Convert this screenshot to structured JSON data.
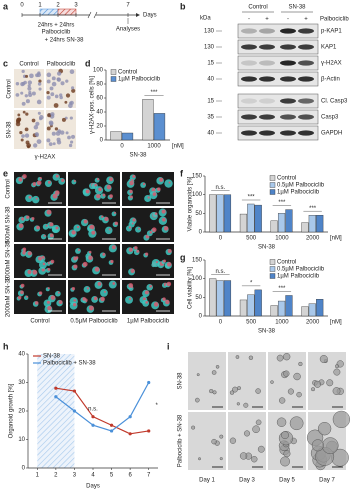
{
  "panels": {
    "a": {
      "label": "a",
      "ticks": [
        0,
        1,
        2,
        3,
        7
      ],
      "axis_label": "Days",
      "treatment_lines": [
        "24hrs + 24hrs",
        "Palbociclib",
        "+ 24hrs SN-38"
      ],
      "end_label": "Analyses"
    },
    "b": {
      "label": "b",
      "groups": [
        "Control",
        "SN-38"
      ],
      "kda_label": "kDa",
      "treatment": "Palbociclib",
      "lane_signs": [
        "-",
        "+",
        "-",
        "+"
      ],
      "rows": [
        {
          "name": "p-KAP1",
          "kda": 130
        },
        {
          "name": "KAP1",
          "kda": 130
        },
        {
          "name": "γ-H2AX",
          "kda": 15
        },
        {
          "name": "β-Actin",
          "kda": 40
        },
        {
          "name": "Cl. Casp3",
          "kda": 15
        },
        {
          "name": "Casp3",
          "kda": 35
        },
        {
          "name": "GAPDH",
          "kda": 40
        }
      ]
    },
    "c": {
      "label": "c",
      "columns": [
        "Control",
        "Palbociclib"
      ],
      "rows": [
        "Control",
        "SN-38"
      ],
      "caption": "γ-H2AX"
    },
    "e": {
      "label": "e",
      "columns": [
        "Control",
        "0.5µM Palbociclib",
        "1µM Palbociclib"
      ],
      "rows": [
        "Control",
        "500nM SN-38",
        "1000nM SN-38",
        "2000nM SN-38"
      ]
    },
    "i": {
      "label": "i",
      "columns": [
        "Day 1",
        "Day 3",
        "Day 5",
        "Day 7"
      ],
      "rows": [
        "SN-38",
        "Palbociclib + SN-38"
      ]
    }
  },
  "chart_data": [
    {
      "type": "bar",
      "panel": "d",
      "ylabel": "γ-H2AX-pos. cells [%]",
      "xlabel": "SN-38",
      "x_unit": "[nM]",
      "categories": [
        "0",
        "1000"
      ],
      "series": [
        {
          "name": "Control",
          "color": "#d4d4d4",
          "values": [
            12,
            58
          ]
        },
        {
          "name": "1µM Palbociclib",
          "color": "#5b8fd0",
          "values": [
            10,
            38
          ]
        }
      ],
      "ylim": [
        0,
        100
      ],
      "yticks": [
        0,
        20,
        40,
        60,
        80,
        100
      ],
      "annotations": [
        null,
        "***"
      ],
      "legend": "upper left"
    },
    {
      "type": "bar",
      "panel": "f",
      "ylabel": "Viable organoids [%]",
      "xlabel": "SN-38",
      "x_unit": "[nM]",
      "categories": [
        "0",
        "500",
        "1000",
        "2000"
      ],
      "series": [
        {
          "name": "Control",
          "color": "#d4d4d4",
          "values": [
            100,
            48,
            30,
            25
          ]
        },
        {
          "name": "0.5µM Palbociclib",
          "color": "#a9c8ea",
          "values": [
            100,
            75,
            50,
            45
          ]
        },
        {
          "name": "1µM Palbociclib",
          "color": "#4f84c8",
          "values": [
            100,
            72,
            60,
            45
          ]
        }
      ],
      "ylim": [
        0,
        150
      ],
      "yticks": [
        0,
        50,
        100,
        150
      ],
      "annotations": [
        "n.s.",
        "***",
        "***",
        "***"
      ],
      "legend": "upper right"
    },
    {
      "type": "bar",
      "panel": "g",
      "ylabel": "Cell viability [%]",
      "xlabel": "SN-38",
      "x_unit": "[nM]",
      "categories": [
        "0",
        "500",
        "1000",
        "2000"
      ],
      "series": [
        {
          "name": "Control",
          "color": "#d4d4d4",
          "values": [
            100,
            43,
            28,
            25
          ]
        },
        {
          "name": "0.5µM Palbociclib",
          "color": "#a9c8ea",
          "values": [
            95,
            57,
            40,
            33
          ]
        },
        {
          "name": "1µM Palbociclib",
          "color": "#4f84c8",
          "values": [
            95,
            70,
            55,
            45
          ]
        }
      ],
      "ylim": [
        0,
        150
      ],
      "yticks": [
        0,
        50,
        100,
        150
      ],
      "annotations": [
        "n.s.",
        "*",
        "***",
        null
      ],
      "legend": "upper right"
    },
    {
      "type": "line",
      "panel": "h",
      "ylabel": "Organoid growth [%]",
      "xlabel": "Days",
      "x": [
        2,
        3,
        4,
        5,
        6,
        7
      ],
      "series": [
        {
          "name": "SN-38",
          "color": "#c0392b",
          "values": [
            28,
            27,
            18,
            15,
            12,
            13
          ]
        },
        {
          "name": "Palbociclib + SN-38",
          "color": "#4a90d9",
          "values": [
            25,
            20,
            15,
            13,
            18,
            30
          ]
        }
      ],
      "xlim": [
        0.5,
        7.5
      ],
      "xticks": [
        1,
        2,
        3,
        4,
        5,
        6,
        7
      ],
      "ylim": [
        0,
        40
      ],
      "yticks": [
        0,
        10,
        20,
        30,
        40
      ],
      "treatment_window": [
        1,
        3
      ],
      "annotations": [
        null,
        null,
        "n.s.",
        null,
        null,
        "*"
      ],
      "legend": "upper left"
    }
  ]
}
